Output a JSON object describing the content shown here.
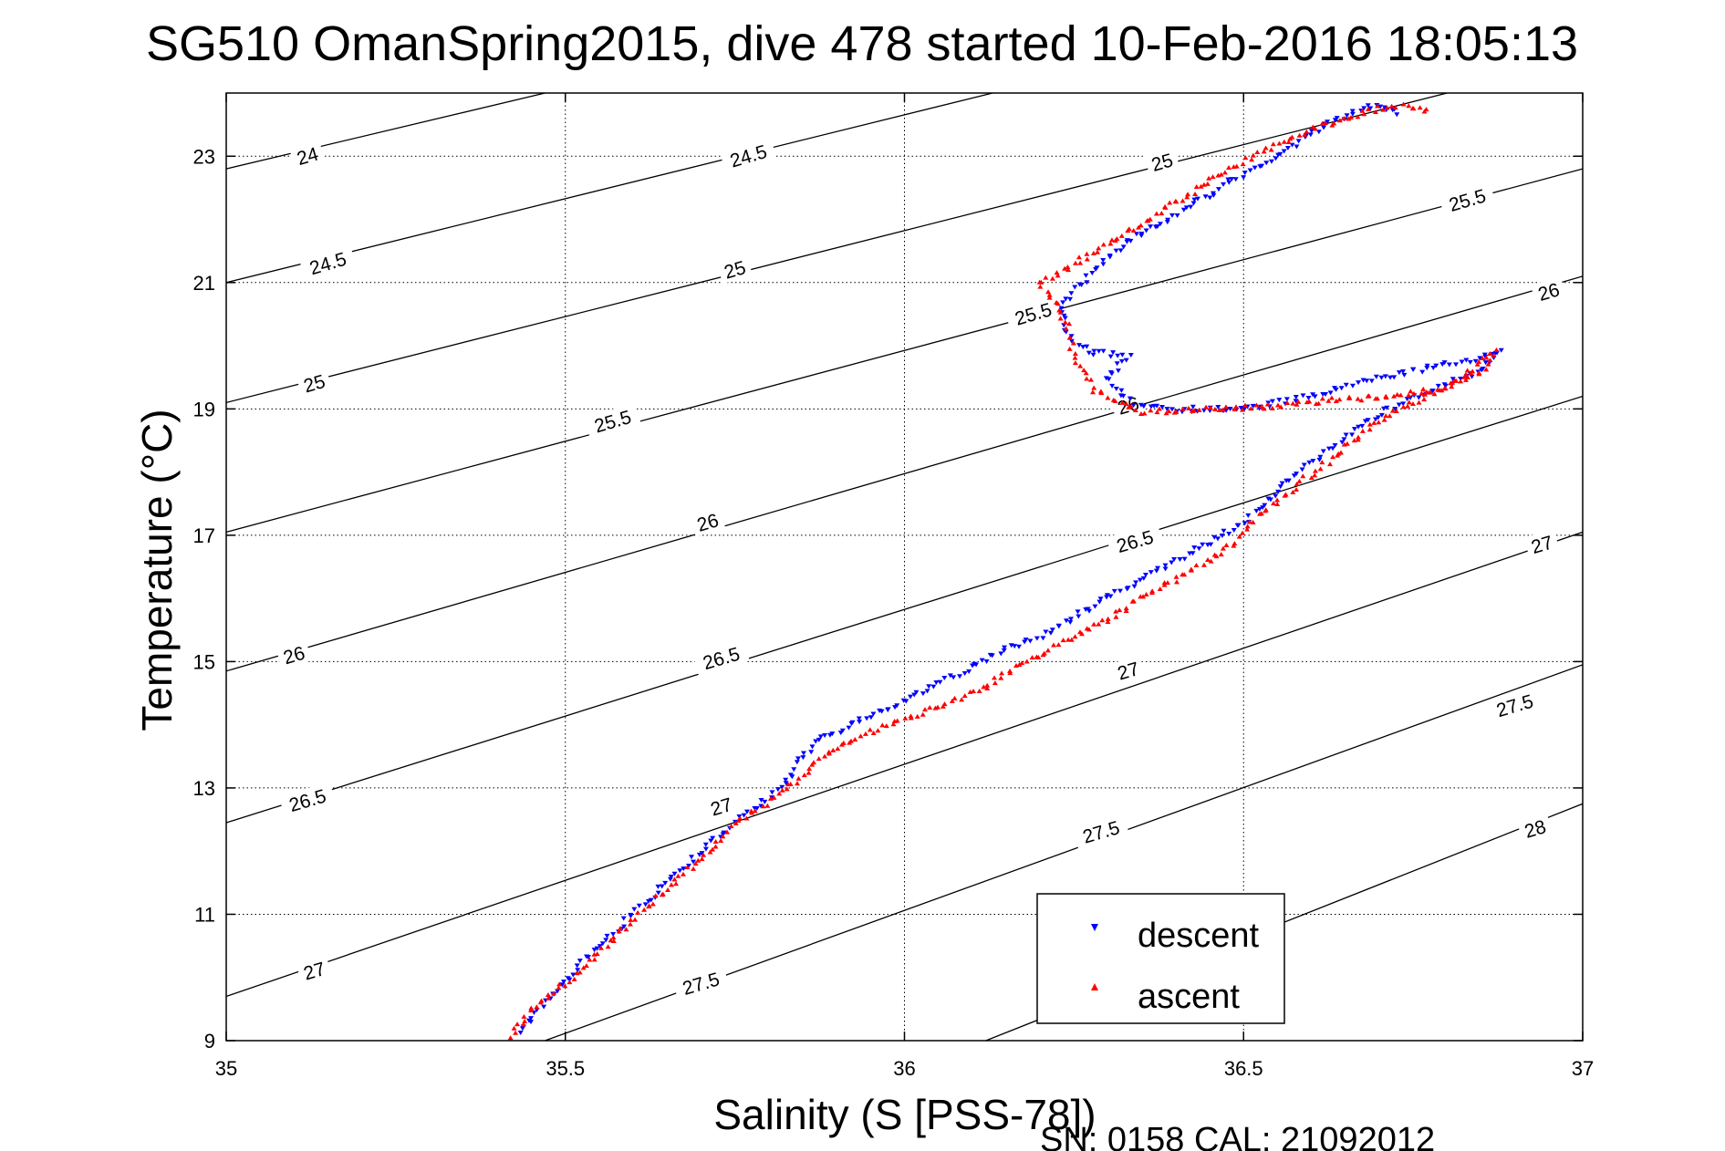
{
  "chart_data": {
    "type": "scatter",
    "title": "SG510 OmanSpring2015, dive 478 started 10-Feb-2016 18:05:13",
    "xlabel": "Salinity (S [PSS-78])",
    "ylabel": "Temperature (°C)",
    "xlim": [
      35,
      37
    ],
    "ylim": [
      9,
      24
    ],
    "xticks": [
      35,
      35.5,
      36,
      36.5,
      37
    ],
    "xtick_labels": [
      "35",
      "35.5",
      "36",
      "36.5",
      "37"
    ],
    "yticks": [
      9,
      11,
      13,
      15,
      17,
      19,
      21,
      23
    ],
    "ytick_labels": [
      "9",
      "11",
      "13",
      "15",
      "17",
      "19",
      "21",
      "23"
    ],
    "grid": true,
    "legend_position": "bottom-right",
    "footer": "SN: 0158  CAL: 21092012",
    "density_contours": {
      "color": "#000000",
      "levels": [
        {
          "value": 24,
          "label": "24",
          "points": [
            [
              35.0,
              22.8
            ],
            [
              35.47,
              24.0
            ]
          ]
        },
        {
          "value": 24.5,
          "label": "24.5",
          "points": [
            [
              35.0,
              21.0
            ],
            [
              36.13,
              24.0
            ]
          ]
        },
        {
          "value": 25,
          "label": "25",
          "points": [
            [
              35.0,
              19.1
            ],
            [
              36.8,
              24.0
            ]
          ]
        },
        {
          "value": 25.5,
          "label": "25.5",
          "points": [
            [
              35.0,
              17.05
            ],
            [
              37.0,
              22.8
            ]
          ]
        },
        {
          "value": 26,
          "label": "26",
          "points": [
            [
              35.0,
              14.85
            ],
            [
              37.0,
              21.1
            ]
          ]
        },
        {
          "value": 26.5,
          "label": "26.5",
          "points": [
            [
              35.0,
              12.45
            ],
            [
              37.0,
              19.2
            ]
          ]
        },
        {
          "value": 27,
          "label": "27",
          "points": [
            [
              35.0,
              9.7
            ],
            [
              37.0,
              17.05
            ]
          ]
        },
        {
          "value": 27.5,
          "label": "27.5",
          "points": [
            [
              35.47,
              9.0
            ],
            [
              37.0,
              14.95
            ]
          ]
        },
        {
          "value": 28,
          "label": "28",
          "points": [
            [
              36.12,
              9.0
            ],
            [
              37.0,
              12.75
            ]
          ]
        }
      ],
      "label_positions": [
        {
          "label": "24",
          "x": 35.12,
          "y": 23.0
        },
        {
          "label": "24.5",
          "x": 35.77,
          "y": 23.0
        },
        {
          "label": "25",
          "x": 36.38,
          "y": 22.9
        },
        {
          "label": "24.5",
          "x": 35.15,
          "y": 21.3
        },
        {
          "label": "25",
          "x": 35.75,
          "y": 21.2
        },
        {
          "label": "25.5",
          "x": 36.83,
          "y": 22.3
        },
        {
          "label": "25",
          "x": 35.13,
          "y": 19.4
        },
        {
          "label": "25.5",
          "x": 35.57,
          "y": 18.8
        },
        {
          "label": "25.5",
          "x": 36.19,
          "y": 20.5
        },
        {
          "label": "26",
          "x": 36.95,
          "y": 20.85
        },
        {
          "label": "26",
          "x": 35.1,
          "y": 15.1
        },
        {
          "label": "26",
          "x": 35.71,
          "y": 17.2
        },
        {
          "label": "26",
          "x": 36.33,
          "y": 19.05
        },
        {
          "label": "26.5",
          "x": 35.12,
          "y": 12.8
        },
        {
          "label": "26.5",
          "x": 35.73,
          "y": 15.05
        },
        {
          "label": "26.5",
          "x": 36.34,
          "y": 16.9
        },
        {
          "label": "27",
          "x": 35.13,
          "y": 10.1
        },
        {
          "label": "27",
          "x": 35.73,
          "y": 12.7
        },
        {
          "label": "27",
          "x": 36.33,
          "y": 14.85
        },
        {
          "label": "27",
          "x": 36.94,
          "y": 16.85
        },
        {
          "label": "27.5",
          "x": 35.7,
          "y": 9.9
        },
        {
          "label": "27.5",
          "x": 36.29,
          "y": 12.3
        },
        {
          "label": "27.5",
          "x": 36.9,
          "y": 14.3
        },
        {
          "label": "28",
          "x": 36.93,
          "y": 12.35
        }
      ]
    },
    "series": [
      {
        "name": "descent",
        "color": "#0000ff",
        "marker": "triangle-down",
        "profile": [
          [
            36.73,
            23.7
          ],
          [
            36.7,
            23.8
          ],
          [
            36.67,
            23.75
          ],
          [
            36.62,
            23.5
          ],
          [
            36.55,
            23.0
          ],
          [
            36.48,
            22.6
          ],
          [
            36.42,
            22.2
          ],
          [
            36.37,
            21.9
          ],
          [
            36.32,
            21.6
          ],
          [
            36.28,
            21.2
          ],
          [
            36.25,
            20.9
          ],
          [
            36.23,
            20.6
          ],
          [
            36.24,
            20.2
          ],
          [
            36.27,
            19.9
          ],
          [
            36.33,
            19.85
          ],
          [
            36.3,
            19.5
          ],
          [
            36.32,
            19.2
          ],
          [
            36.34,
            19.1
          ],
          [
            36.4,
            19.0
          ],
          [
            36.5,
            19.0
          ],
          [
            36.6,
            19.2
          ],
          [
            36.7,
            19.5
          ],
          [
            36.8,
            19.7
          ],
          [
            36.88,
            19.9
          ],
          [
            36.85,
            19.6
          ],
          [
            36.75,
            19.2
          ],
          [
            36.68,
            18.8
          ],
          [
            36.62,
            18.3
          ],
          [
            36.57,
            17.9
          ],
          [
            36.53,
            17.5
          ],
          [
            36.5,
            17.2
          ],
          [
            36.45,
            16.9
          ],
          [
            36.4,
            16.6
          ],
          [
            36.33,
            16.2
          ],
          [
            36.28,
            15.9
          ],
          [
            36.22,
            15.5
          ],
          [
            36.15,
            15.2
          ],
          [
            36.08,
            14.8
          ],
          [
            36.02,
            14.5
          ],
          [
            35.96,
            14.2
          ],
          [
            35.92,
            14.0
          ],
          [
            35.88,
            13.8
          ],
          [
            35.85,
            13.5
          ],
          [
            35.82,
            13.0
          ],
          [
            35.77,
            12.6
          ],
          [
            35.72,
            12.2
          ],
          [
            35.68,
            11.8
          ],
          [
            35.63,
            11.3
          ],
          [
            35.58,
            10.8
          ],
          [
            35.53,
            10.3
          ],
          [
            35.49,
            9.8
          ],
          [
            35.45,
            9.4
          ],
          [
            35.43,
            9.05
          ]
        ]
      },
      {
        "name": "ascent",
        "color": "#ff0000",
        "marker": "triangle-up",
        "profile": [
          [
            35.42,
            9.05
          ],
          [
            35.45,
            9.5
          ],
          [
            35.5,
            9.9
          ],
          [
            35.55,
            10.4
          ],
          [
            35.6,
            10.9
          ],
          [
            35.65,
            11.4
          ],
          [
            35.7,
            11.9
          ],
          [
            35.75,
            12.4
          ],
          [
            35.8,
            12.8
          ],
          [
            35.84,
            13.1
          ],
          [
            35.88,
            13.5
          ],
          [
            35.93,
            13.8
          ],
          [
            35.98,
            14.0
          ],
          [
            36.05,
            14.3
          ],
          [
            36.12,
            14.6
          ],
          [
            36.18,
            15.0
          ],
          [
            36.25,
            15.4
          ],
          [
            36.32,
            15.8
          ],
          [
            36.38,
            16.2
          ],
          [
            36.45,
            16.6
          ],
          [
            36.49,
            16.9
          ],
          [
            36.52,
            17.3
          ],
          [
            36.58,
            17.8
          ],
          [
            36.64,
            18.3
          ],
          [
            36.7,
            18.8
          ],
          [
            36.77,
            19.2
          ],
          [
            36.85,
            19.6
          ],
          [
            36.87,
            19.9
          ],
          [
            36.8,
            19.3
          ],
          [
            36.7,
            19.2
          ],
          [
            36.55,
            19.05
          ],
          [
            36.45,
            19.0
          ],
          [
            36.35,
            18.95
          ],
          [
            36.28,
            19.3
          ],
          [
            36.25,
            19.8
          ],
          [
            36.24,
            20.3
          ],
          [
            36.22,
            20.7
          ],
          [
            36.2,
            21.0
          ],
          [
            36.25,
            21.3
          ],
          [
            36.3,
            21.6
          ],
          [
            36.36,
            22.0
          ],
          [
            36.42,
            22.4
          ],
          [
            36.48,
            22.8
          ],
          [
            36.55,
            23.2
          ],
          [
            36.62,
            23.5
          ],
          [
            36.68,
            23.7
          ],
          [
            36.72,
            23.8
          ],
          [
            36.78,
            23.7
          ]
        ]
      }
    ]
  }
}
